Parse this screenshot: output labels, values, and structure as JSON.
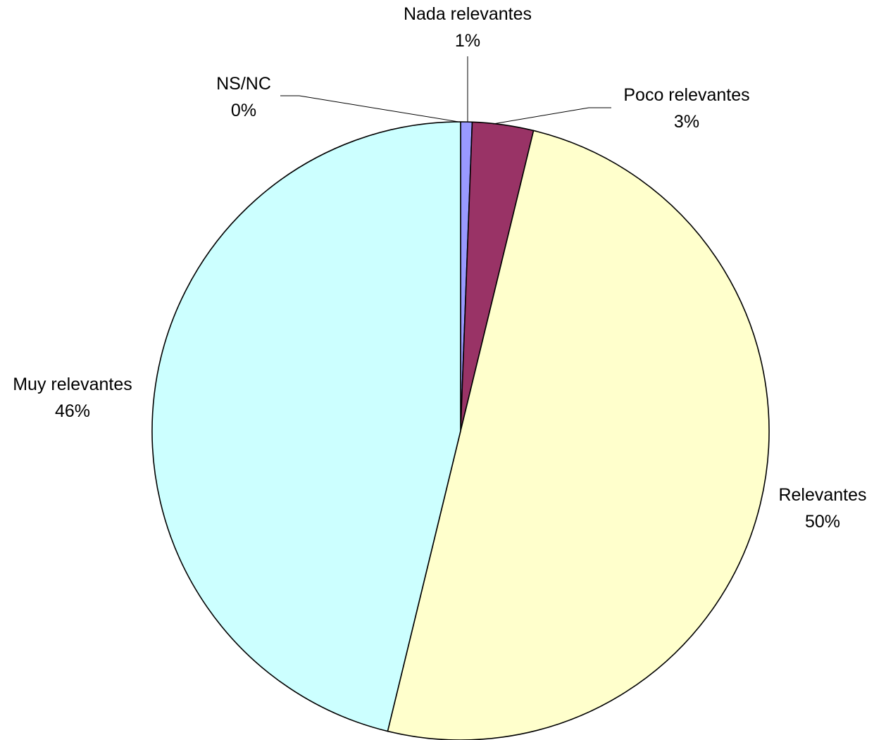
{
  "chart_data": {
    "type": "pie",
    "start_angle_deg": 0,
    "direction": "clockwise",
    "slices": [
      {
        "label": "Nada relevantes",
        "percent_label": "1%",
        "value": 0.6,
        "color": "#9999ff"
      },
      {
        "label": "Poco relevantes",
        "percent_label": "3%",
        "value": 3.2,
        "color": "#993366"
      },
      {
        "label": "Relevantes",
        "percent_label": "50%",
        "value": 50.0,
        "color": "#ffffcc"
      },
      {
        "label": "Muy relevantes",
        "percent_label": "46%",
        "value": 46.2,
        "color": "#ccffff"
      },
      {
        "label": "NS/NC",
        "percent_label": "0%",
        "value": 0.0,
        "color": "#ff8080"
      }
    ]
  }
}
